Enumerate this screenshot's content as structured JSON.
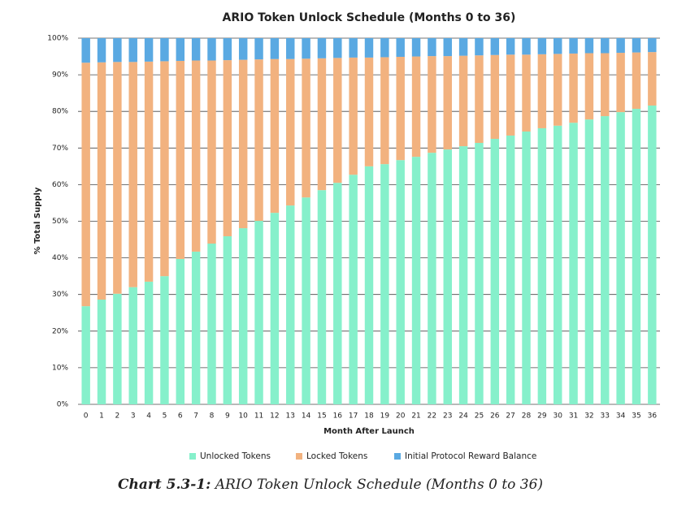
{
  "chart_data": {
    "type": "stacked_bar",
    "title": "ARIO Token Unlock Schedule (Months 0 to 36)",
    "x_label": "Month After Launch",
    "y_label": "% Total Supply",
    "categories": [
      "0",
      "1",
      "2",
      "3",
      "4",
      "5",
      "6",
      "7",
      "8",
      "9",
      "10",
      "11",
      "12",
      "13",
      "14",
      "15",
      "16",
      "17",
      "18",
      "19",
      "20",
      "21",
      "22",
      "23",
      "24",
      "25",
      "26",
      "27",
      "28",
      "29",
      "30",
      "31",
      "32",
      "33",
      "34",
      "35",
      "36"
    ],
    "series": [
      {
        "name": "Unlocked Tokens",
        "color": "#86f0cb",
        "values": [
          26.8,
          28.6,
          30.2,
          32,
          33.5,
          35,
          39.7,
          41.7,
          43.9,
          45.9,
          48.1,
          50.1,
          52.3,
          54.3,
          56.5,
          58.5,
          60.5,
          62.7,
          65,
          65.6,
          66.7,
          67.6,
          68.7,
          69.6,
          70.5,
          71.4,
          72.5,
          73.4,
          74.5,
          75.4,
          76.1,
          76.9,
          77.8,
          78.7,
          79.8,
          80.7,
          81.6
        ]
      },
      {
        "name": "Locked Tokens",
        "color": "#f2b27f",
        "values": [
          66.5,
          64.8,
          63.3,
          61.5,
          60.1,
          58.7,
          54.1,
          52.2,
          50.0,
          48.1,
          46.0,
          44.1,
          42.0,
          40.0,
          37.9,
          36.0,
          34.1,
          32.0,
          29.7,
          29.2,
          28.2,
          27.4,
          26.4,
          25.5,
          24.7,
          23.9,
          22.9,
          22.1,
          21.0,
          20.2,
          19.6,
          18.9,
          18.1,
          17.2,
          16.2,
          15.4,
          14.6
        ]
      },
      {
        "name": "Initial Protocol Reward Balance",
        "color": "#5aa9e2",
        "values": [
          6.7,
          6.6,
          6.5,
          6.5,
          6.4,
          6.3,
          6.2,
          6.1,
          6.1,
          6.0,
          5.9,
          5.8,
          5.7,
          5.7,
          5.6,
          5.5,
          5.4,
          5.3,
          5.3,
          5.2,
          5.1,
          5.0,
          4.9,
          4.9,
          4.8,
          4.7,
          4.6,
          4.5,
          4.5,
          4.4,
          4.3,
          4.2,
          4.1,
          4.1,
          4.0,
          3.9,
          3.8
        ]
      }
    ],
    "ylim": [
      0,
      100
    ],
    "yticks": [
      {
        "value": 0,
        "label": "0%"
      },
      {
        "value": 10,
        "label": "10%"
      },
      {
        "value": 20,
        "label": "20%"
      },
      {
        "value": 30,
        "label": "30%"
      },
      {
        "value": 40,
        "label": "40%"
      },
      {
        "value": 50,
        "label": "50%"
      },
      {
        "value": 60,
        "label": "60%"
      },
      {
        "value": 70,
        "label": "70%"
      },
      {
        "value": 80,
        "label": "80%"
      },
      {
        "value": 90,
        "label": "90%"
      },
      {
        "value": 100,
        "label": "100%"
      }
    ],
    "grid": true,
    "legend": "bottom"
  },
  "caption": {
    "label": "Chart 5.3-1:",
    "text": "ARIO Token Unlock Schedule (Months 0 to 36)"
  }
}
